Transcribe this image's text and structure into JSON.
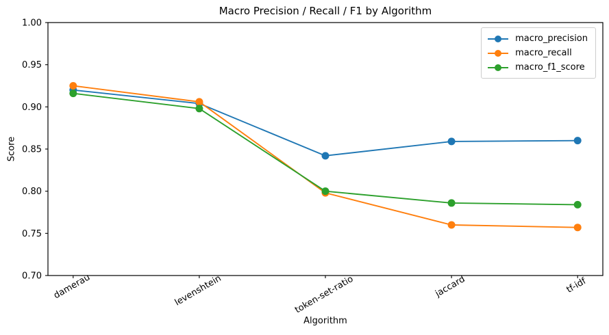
{
  "chart_data": {
    "type": "line",
    "title": "Macro Precision / Recall / F1 by Algorithm",
    "xlabel": "Algorithm",
    "ylabel": "Score",
    "categories": [
      "damerau",
      "levenshtein",
      "token-set-ratio",
      "jaccard",
      "tf-idf"
    ],
    "series": [
      {
        "name": "macro_precision",
        "color": "#1f77b4",
        "values": [
          0.92,
          0.904,
          0.842,
          0.859,
          0.86
        ]
      },
      {
        "name": "macro_recall",
        "color": "#ff7f0e",
        "values": [
          0.925,
          0.906,
          0.798,
          0.76,
          0.757
        ]
      },
      {
        "name": "macro_f1_score",
        "color": "#2ca02c",
        "values": [
          0.916,
          0.898,
          0.8,
          0.786,
          0.784
        ]
      }
    ],
    "ylim": [
      0.7,
      1.0
    ],
    "yticks": [
      0.7,
      0.75,
      0.8,
      0.85,
      0.9,
      0.95,
      1.0
    ],
    "ytick_labels": [
      "0.70",
      "0.75",
      "0.80",
      "0.85",
      "0.90",
      "0.95",
      "1.00"
    ],
    "x_tick_rotation_deg": 30,
    "grid": false,
    "legend_position": "upper right",
    "marker": "o",
    "axis_color": "#000000",
    "legend_border_color": "#cccccc",
    "background_color": "#ffffff"
  }
}
